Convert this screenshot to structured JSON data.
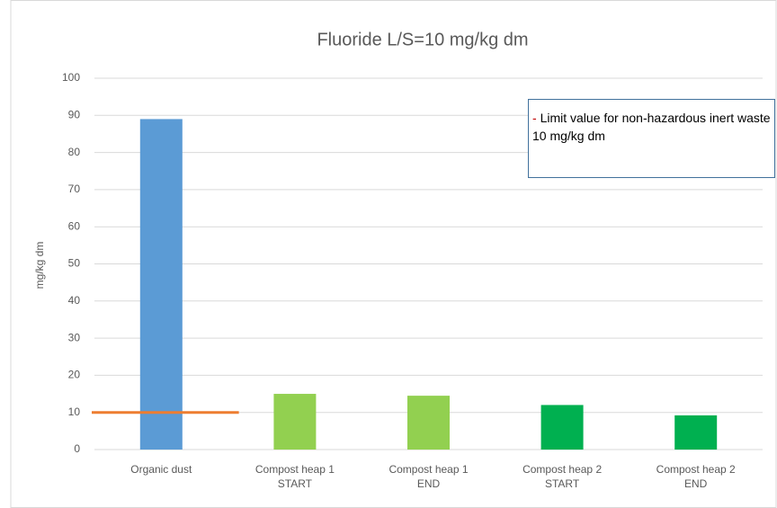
{
  "chart_data": {
    "type": "bar",
    "title": "Fluoride L/S=10 mg/kg dm",
    "y_label": "mg/kg dm",
    "categories": [
      "Organic dust",
      "Compost heap 1 START",
      "Compost heap 1 END",
      "Compost heap 2 START",
      "Compost heap 2 END"
    ],
    "values": [
      89,
      15,
      14.5,
      12,
      9.2
    ],
    "colors": [
      "#5b9bd5",
      "#92d050",
      "#92d050",
      "#00b050",
      "#00b050"
    ],
    "ylim": [
      0,
      100
    ],
    "yticks": [
      0,
      10,
      20,
      30,
      40,
      50,
      60,
      70,
      80,
      90,
      100
    ],
    "grid": true,
    "limit_line": {
      "value": 10,
      "color": "#ed7d31"
    },
    "annotation": {
      "marker": "-",
      "text": "Limit value for non-hazardous inert waste 10 mg/kg dm"
    }
  }
}
